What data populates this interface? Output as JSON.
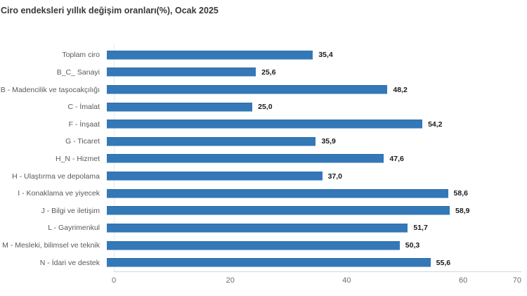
{
  "chart_data": {
    "type": "bar",
    "orientation": "horizontal",
    "title": "Ciro endeksleri yıllık değişim oranları(%), Ocak 2025",
    "categories": [
      "Toplam ciro",
      "B_C_ Sanayi",
      "B - Madencilik ve taşocakçılığı",
      "C - İmalat",
      "F - İnşaat",
      "G - Ticaret",
      "H_N - Hizmet",
      "H - Ulaştırma ve depolama",
      "I - Konaklama ve yiyecek",
      "J - Bilgi ve iletişim",
      "L - Gayrimenkul",
      "M - Mesleki, bilimsel ve teknik",
      "N - İdari ve destek"
    ],
    "values": [
      35.4,
      25.6,
      48.2,
      25.0,
      54.2,
      35.9,
      47.6,
      37.0,
      58.6,
      58.9,
      51.7,
      50.3,
      55.6
    ],
    "value_labels": [
      "35,4",
      "25,6",
      "48,2",
      "25,0",
      "54,2",
      "35,9",
      "47,6",
      "37,0",
      "58,6",
      "58,9",
      "51,7",
      "50,3",
      "55,6"
    ],
    "xlabel": "",
    "ylabel": "",
    "xlim": [
      0,
      70
    ],
    "xticks": [
      0,
      20,
      40,
      60,
      70
    ],
    "xtick_labels": [
      "0",
      "20",
      "40",
      "60",
      "70"
    ],
    "grid": false,
    "legend": null,
    "bar_color": "#3478b8"
  }
}
